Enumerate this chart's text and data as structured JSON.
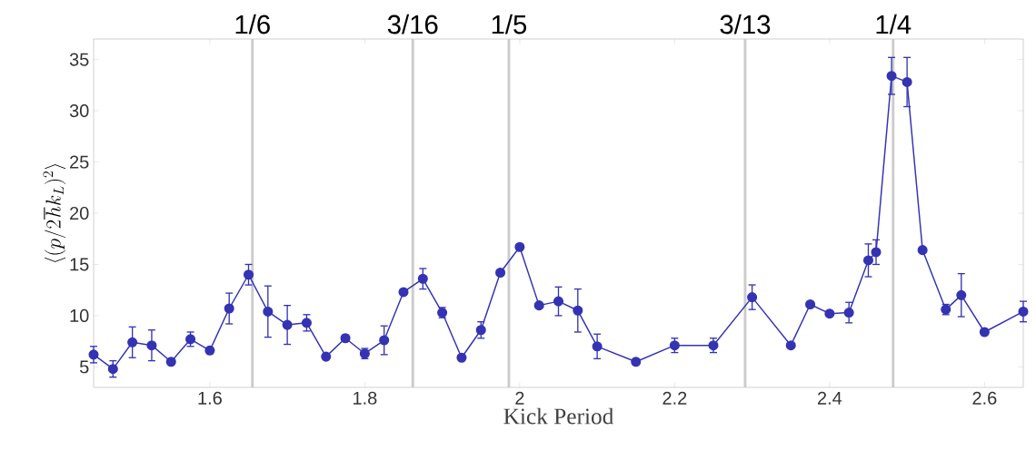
{
  "chart_data": {
    "type": "line",
    "xlabel": "Kick Period",
    "ylabel": "\\langle(p/2\\hbar k_L)^2\\rangle",
    "x": [
      1.45,
      1.475,
      1.5,
      1.525,
      1.55,
      1.575,
      1.6,
      1.625,
      1.65,
      1.675,
      1.7,
      1.725,
      1.75,
      1.775,
      1.8,
      1.825,
      1.85,
      1.875,
      1.9,
      1.925,
      1.95,
      1.975,
      2.0,
      2.025,
      2.05,
      2.075,
      2.1,
      2.15,
      2.2,
      2.25,
      2.3,
      2.35,
      2.375,
      2.4,
      2.425,
      2.45,
      2.46,
      2.48,
      2.5,
      2.52,
      2.55,
      2.57,
      2.6,
      2.65
    ],
    "series": [
      {
        "color": "#3333b3",
        "values": [
          6.2,
          4.8,
          7.4,
          7.1,
          5.5,
          7.7,
          6.6,
          10.7,
          14.0,
          10.4,
          9.1,
          9.3,
          6.0,
          7.8,
          6.3,
          7.6,
          12.3,
          13.6,
          10.3,
          5.9,
          8.6,
          14.2,
          16.7,
          11.0,
          11.4,
          10.5,
          7.0,
          5.5,
          7.1,
          7.1,
          11.8,
          7.1,
          11.1,
          10.2,
          10.3,
          15.4,
          16.2,
          33.4,
          32.8,
          16.4,
          10.6,
          12.0,
          8.4,
          10.4
        ],
        "errors": [
          0.8,
          0.8,
          1.5,
          1.5,
          null,
          0.7,
          0.3,
          1.5,
          1.0,
          2.5,
          1.9,
          0.8,
          null,
          0.3,
          0.5,
          1.4,
          null,
          1.0,
          0.5,
          null,
          0.8,
          null,
          null,
          null,
          1.4,
          2.1,
          1.2,
          null,
          0.7,
          0.7,
          1.2,
          null,
          null,
          null,
          1.0,
          1.6,
          1.2,
          1.8,
          2.4,
          null,
          0.5,
          2.1,
          null,
          1.0
        ]
      }
    ],
    "xlim": [
      1.45,
      2.65
    ],
    "ylim": [
      3,
      37
    ],
    "xticks": [
      1.6,
      1.8,
      {
        "value": 2.0,
        "label": "2"
      },
      2.2,
      2.4,
      2.6
    ],
    "yticks": [
      5,
      10,
      15,
      20,
      25,
      30,
      35
    ],
    "ref_lines": [
      {
        "axis": "x",
        "value": 1.655,
        "color": "#cccccc"
      },
      {
        "axis": "x",
        "value": 1.862,
        "color": "#cccccc"
      },
      {
        "axis": "x",
        "value": 1.986,
        "color": "#cccccc"
      },
      {
        "axis": "x",
        "value": 2.291,
        "color": "#cccccc"
      },
      {
        "axis": "x",
        "value": 2.482,
        "color": "#cccccc"
      }
    ],
    "annotations": [
      {
        "text": "1/6",
        "x": 1.655,
        "y": 37
      },
      {
        "text": "3/16",
        "x": 1.862,
        "y": 37
      },
      {
        "text": "1/5",
        "x": 1.986,
        "y": 37
      },
      {
        "text": "3/13",
        "x": 2.291,
        "y": 37
      },
      {
        "text": "1/4",
        "x": 2.482,
        "y": 37
      }
    ],
    "grid": false,
    "marker": "circle",
    "line_style": "solid"
  }
}
